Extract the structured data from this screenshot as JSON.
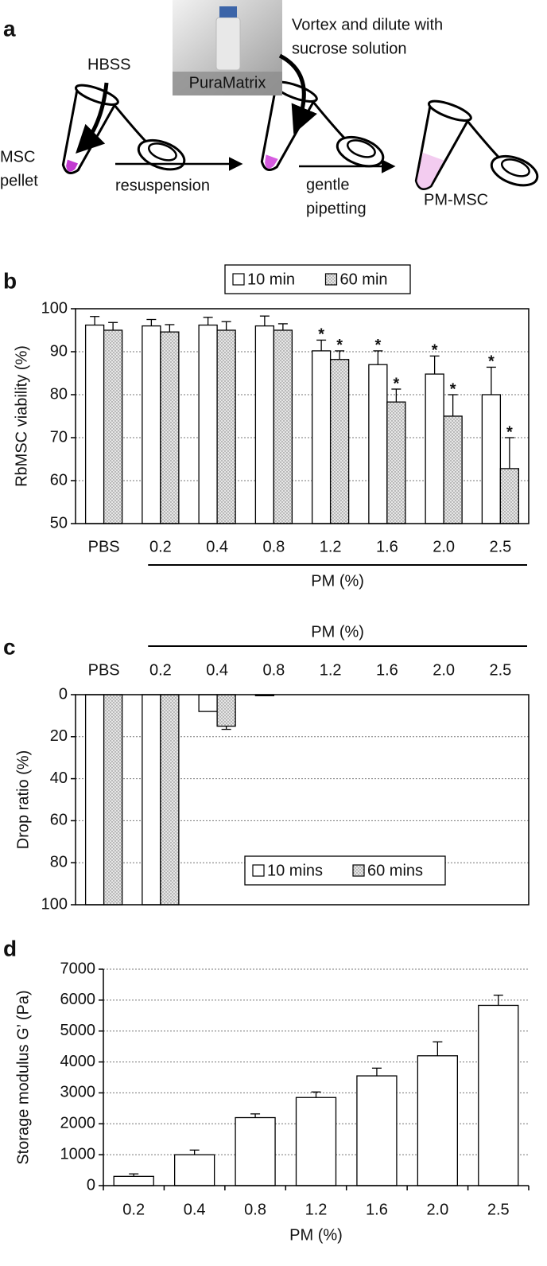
{
  "diagram": {
    "panel_label": "a",
    "hbss": "HBSS",
    "pellet": [
      "MSC",
      "pellet"
    ],
    "step1": "resuspension",
    "reagent": "PuraMatrix",
    "step2": [
      "Vortex and dilute with",
      "sucrose solution"
    ],
    "step3": [
      "gentle",
      "pipetting"
    ],
    "product": "PM-MSC"
  },
  "chart_data": [
    {
      "type": "bar",
      "panel_label": "b",
      "ylabel": "RbMSC viability (%)",
      "xlabel": "PM (%)",
      "xlabel_bracket": true,
      "categories": [
        "PBS",
        "0.2",
        "0.4",
        "0.8",
        "1.2",
        "1.6",
        "2.0",
        "2.5"
      ],
      "series": [
        {
          "name": "10 min",
          "color": "#ffffff",
          "values": [
            96.2,
            96,
            96.2,
            96,
            90.2,
            87,
            84.8,
            80
          ],
          "errors": [
            2,
            1.5,
            1.8,
            2.3,
            2.5,
            3.2,
            4.2,
            6.4
          ],
          "significance": [
            null,
            null,
            null,
            null,
            "*",
            "*",
            "*",
            "*"
          ]
        },
        {
          "name": "60 min",
          "color": "#d9d9d9",
          "pattern": "dots",
          "values": [
            95,
            94.6,
            95,
            95,
            88.2,
            78.3,
            75,
            62.8
          ],
          "errors": [
            1.8,
            1.7,
            2,
            1.5,
            2,
            3,
            5,
            7.2
          ],
          "significance": [
            null,
            null,
            null,
            null,
            "*",
            "*",
            "*",
            "*"
          ]
        }
      ],
      "ylim": [
        50,
        100
      ],
      "yticks": [
        50,
        60,
        70,
        80,
        90,
        100
      ],
      "grid": true,
      "frame": true,
      "legend": "top",
      "category_axis": "bottom"
    },
    {
      "type": "bar",
      "panel_label": "c",
      "ylabel": "Drop ratio (%)",
      "xlabel": "PM (%)",
      "xlabel_bracket": true,
      "categories": [
        "PBS",
        "0.2",
        "0.4",
        "0.8",
        "1.2",
        "1.6",
        "2.0",
        "2.5"
      ],
      "series": [
        {
          "name": "10 mins",
          "color": "#ffffff",
          "values": [
            100,
            100,
            8,
            0.5,
            0,
            0,
            0,
            0
          ],
          "errors": [
            null,
            null,
            null,
            null,
            null,
            null,
            null,
            null
          ]
        },
        {
          "name": "60 mins",
          "color": "#d9d9d9",
          "pattern": "dots",
          "values": [
            100,
            100,
            15,
            0,
            0,
            0,
            0,
            0
          ],
          "errors": [
            null,
            null,
            1.5,
            null,
            null,
            null,
            null,
            null
          ]
        }
      ],
      "ylim": [
        0,
        100
      ],
      "y_inverted": true,
      "yticks": [
        0,
        20,
        40,
        60,
        80,
        100
      ],
      "grid": true,
      "frame": true,
      "legend": "bottom-right",
      "category_axis": "top"
    },
    {
      "type": "bar",
      "panel_label": "d",
      "ylabel": "Storage modulus G’ (Pa)",
      "xlabel": "PM (%)",
      "xlabel_bracket": false,
      "categories": [
        "0.2",
        "0.4",
        "0.8",
        "1.2",
        "1.6",
        "2.0",
        "2.5"
      ],
      "values": [
        300,
        1000,
        2200,
        2850,
        3550,
        4200,
        5830
      ],
      "errors": [
        80,
        150,
        120,
        180,
        250,
        450,
        330
      ],
      "color": "#ffffff",
      "ylim": [
        0,
        7000
      ],
      "yticks": [
        0,
        1000,
        2000,
        3000,
        4000,
        5000,
        6000,
        7000
      ],
      "grid": true,
      "frame": false,
      "category_axis": "bottom"
    }
  ]
}
